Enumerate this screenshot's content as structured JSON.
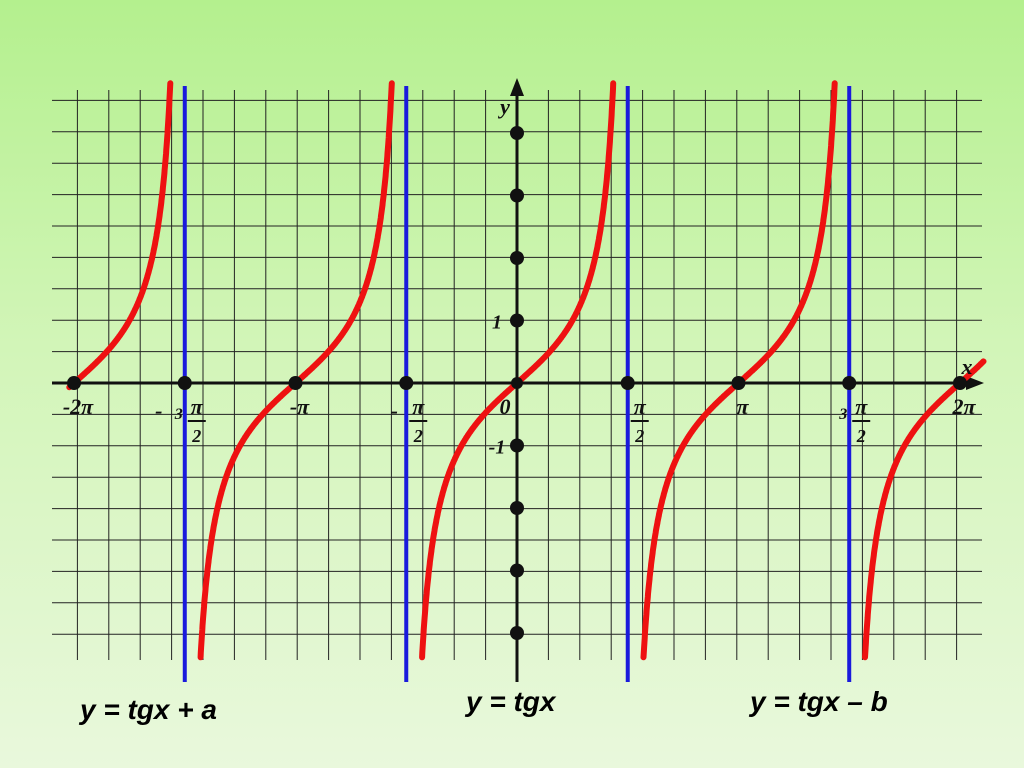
{
  "chart_data": {
    "type": "line",
    "title": "",
    "xlabel": "x",
    "ylabel": "y",
    "xlim": [
      -6.6,
      6.6
    ],
    "ylim": [
      -4.3,
      4.7
    ],
    "grid": true,
    "x_tick_labels": [
      {
        "value": -6.2832,
        "text": "-2π"
      },
      {
        "value": -4.7124,
        "text": "-3π/2"
      },
      {
        "value": -3.1416,
        "text": "-π"
      },
      {
        "value": -1.5708,
        "text": "-π/2"
      },
      {
        "value": 0,
        "text": "0"
      },
      {
        "value": 1.5708,
        "text": "π/2"
      },
      {
        "value": 3.1416,
        "text": "π"
      },
      {
        "value": 4.7124,
        "text": "3π/2"
      },
      {
        "value": 6.2832,
        "text": "2π"
      }
    ],
    "y_tick_labels": [
      {
        "value": 1,
        "text": "1"
      },
      {
        "value": -1,
        "text": "-1"
      }
    ],
    "x_axis_points": [
      -6.2832,
      -4.7124,
      -3.1416,
      -1.5708,
      1.5708,
      3.1416,
      4.7124,
      6.2832
    ],
    "y_axis_points": [
      -4,
      -3,
      -2,
      -1,
      1,
      2,
      3,
      4
    ],
    "asymptotes": [
      -4.7124,
      -1.5708,
      1.5708,
      4.7124
    ],
    "series": [
      {
        "function": "tan(x)",
        "color": "#ee1111"
      }
    ],
    "asymptote_color": "#1a1adc",
    "axis_color": "#111111",
    "annotations": [
      {
        "text": "y = tgx + a",
        "color": "#2ad8f5"
      },
      {
        "text": "y = tgx",
        "color": "#d8108a"
      },
      {
        "text": "y = tgx – b",
        "color": "#dd22dd"
      }
    ]
  }
}
